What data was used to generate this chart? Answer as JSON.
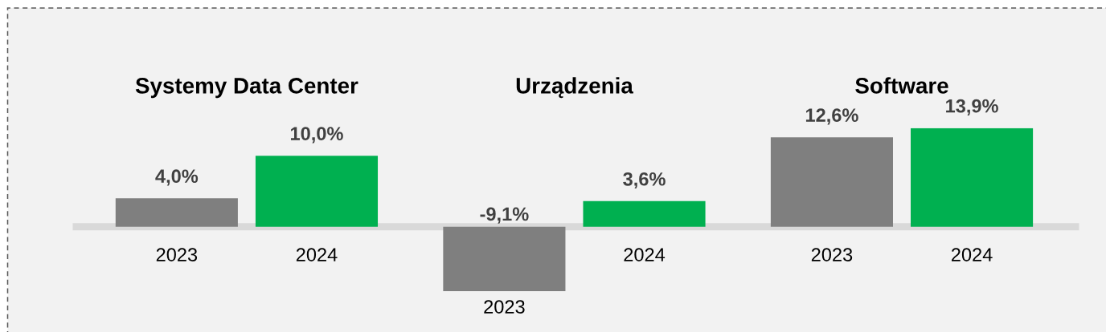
{
  "chart_data": {
    "type": "bar",
    "categories": [
      "Systemy Data Center",
      "Urządzenia",
      "Software"
    ],
    "series": [
      {
        "name": "2023",
        "color": "#7f7f7f",
        "values": [
          4.0,
          -9.1,
          12.6
        ],
        "value_labels": [
          "4,0%",
          "-9,1%",
          "12,6%"
        ]
      },
      {
        "name": "2024",
        "color": "#00b050",
        "values": [
          10.0,
          3.6,
          13.9
        ],
        "value_labels": [
          "10,0%",
          "3,6%",
          "13,9%"
        ]
      }
    ]
  }
}
